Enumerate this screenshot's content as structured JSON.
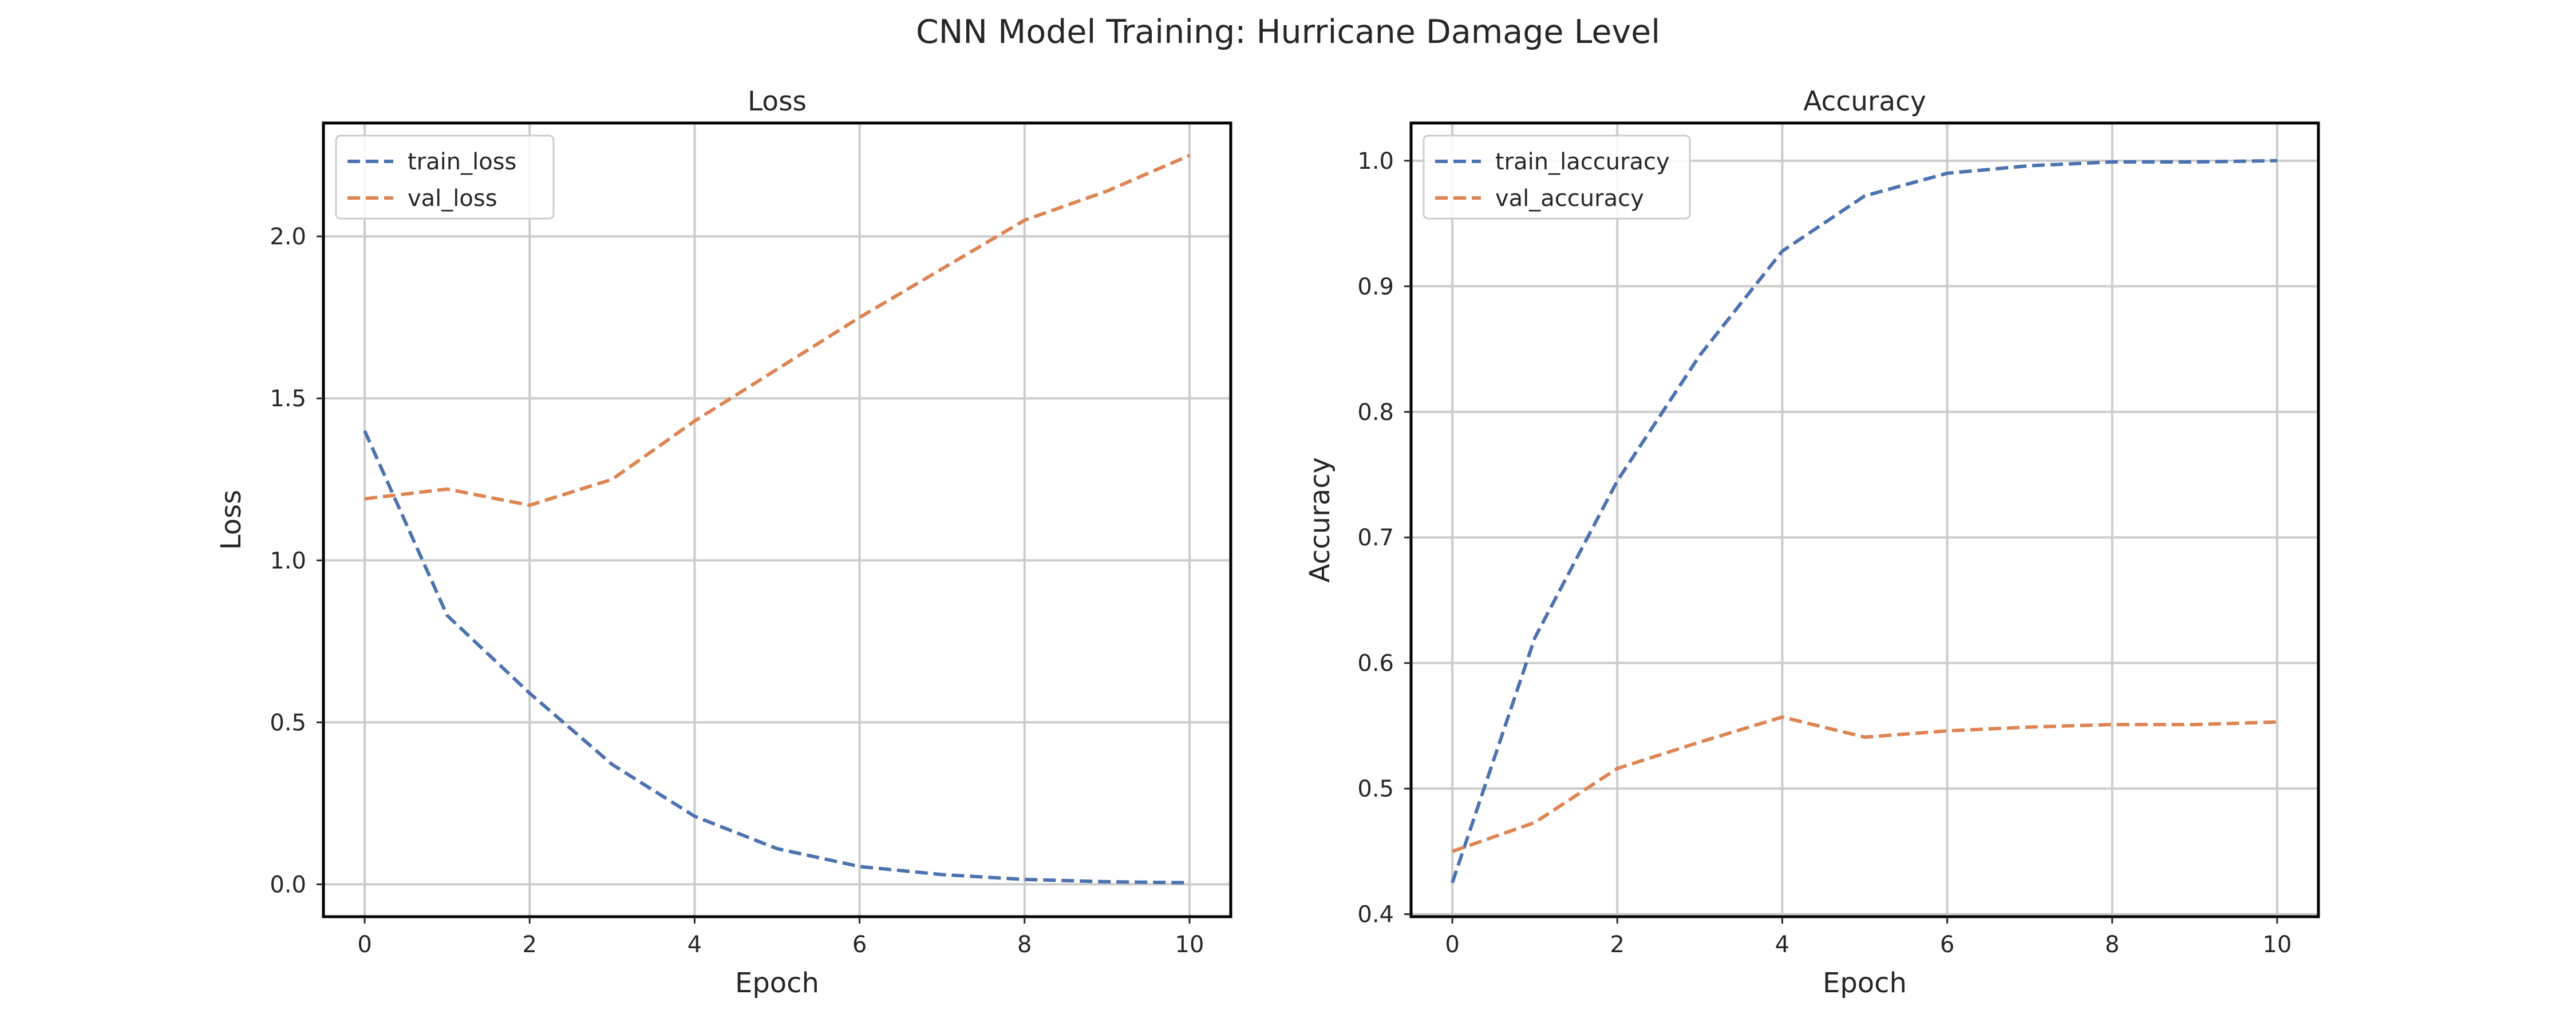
{
  "figure_title": "CNN Model Training: Hurricane Damage Level",
  "colors": {
    "blue": "#4c72b0",
    "orange": "#dd8452"
  },
  "chart_data": [
    {
      "type": "line",
      "title": "Loss",
      "xlabel": "Epoch",
      "ylabel": "Loss",
      "xlim": [
        -0.5,
        10.5
      ],
      "ylim": [
        -0.1,
        2.35
      ],
      "xticks": [
        0,
        2,
        4,
        6,
        8,
        10
      ],
      "xtick_labels": [
        "0",
        "2",
        "4",
        "6",
        "8",
        "10"
      ],
      "yticks": [
        0,
        0.5,
        1,
        1.5,
        2
      ],
      "ytick_labels": [
        "0.0",
        "0.5",
        "1.0",
        "1.5",
        "2.0"
      ],
      "grid": true,
      "legend_position": "top-left",
      "x": [
        0,
        1,
        2,
        3,
        4,
        5,
        6,
        7,
        8,
        9,
        10
      ],
      "series": [
        {
          "name": "train_loss",
          "color": "#4c72b0",
          "values": [
            1.4,
            0.83,
            0.59,
            0.37,
            0.21,
            0.11,
            0.055,
            0.03,
            0.015,
            0.008,
            0.005
          ]
        },
        {
          "name": "val_loss",
          "color": "#dd8452",
          "values": [
            1.19,
            1.22,
            1.17,
            1.25,
            1.43,
            1.59,
            1.75,
            1.9,
            2.05,
            2.14,
            2.25
          ]
        }
      ]
    },
    {
      "type": "line",
      "title": "Accuracy",
      "xlabel": "Epoch",
      "ylabel": "Accuracy",
      "xlim": [
        -0.5,
        10.5
      ],
      "ylim": [
        0.398,
        1.03
      ],
      "xticks": [
        0,
        2,
        4,
        6,
        8,
        10
      ],
      "xtick_labels": [
        "0",
        "2",
        "4",
        "6",
        "8",
        "10"
      ],
      "yticks": [
        0.4,
        0.5,
        0.6,
        0.7,
        0.8,
        0.9,
        1.0
      ],
      "ytick_labels": [
        "0.4",
        "0.5",
        "0.6",
        "0.7",
        "0.8",
        "0.9",
        "1.0"
      ],
      "grid": true,
      "legend_position": "top-left",
      "x": [
        0,
        1,
        2,
        3,
        4,
        5,
        6,
        7,
        8,
        9,
        10
      ],
      "series": [
        {
          "name": "train_laccuracy",
          "color": "#4c72b0",
          "values": [
            0.425,
            0.62,
            0.745,
            0.845,
            0.928,
            0.972,
            0.99,
            0.996,
            0.999,
            0.999,
            1.0
          ]
        },
        {
          "name": "val_accuracy",
          "color": "#dd8452",
          "values": [
            0.45,
            0.473,
            0.516,
            0.537,
            0.557,
            0.541,
            0.546,
            0.549,
            0.551,
            0.551,
            0.553
          ]
        }
      ]
    }
  ]
}
